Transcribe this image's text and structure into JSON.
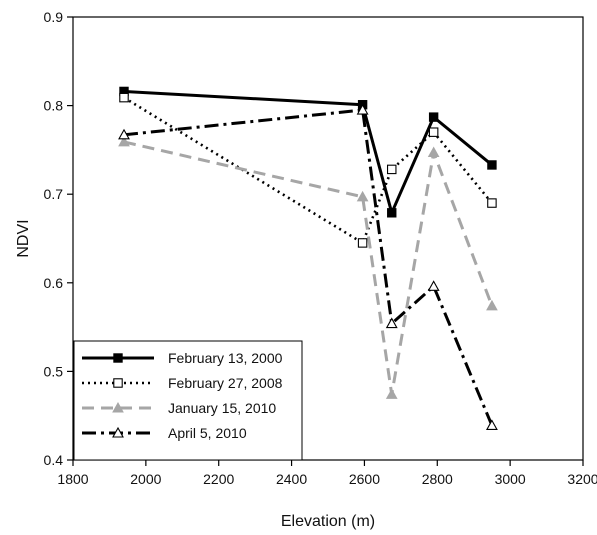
{
  "chart_data": {
    "type": "line",
    "xlabel": "Elevation (m)",
    "ylabel": "NDVI",
    "xlim": [
      1800,
      3200
    ],
    "ylim": [
      0.4,
      0.9
    ],
    "x_ticks": [
      1800,
      2000,
      2200,
      2400,
      2600,
      2800,
      3000,
      3200
    ],
    "y_ticks": [
      0.4,
      0.5,
      0.6,
      0.7,
      0.8,
      0.9
    ],
    "x_tick_labels": [
      "1800",
      "2000",
      "2200",
      "2400",
      "2600",
      "2800",
      "3000",
      "3200"
    ],
    "y_tick_labels": [
      "0.4",
      "0.5",
      "0.6",
      "0.7",
      "0.8",
      "0.9"
    ],
    "grid": false,
    "legend_position": "bottom-left",
    "series": [
      {
        "name": "February 13, 2000",
        "color": "#000000",
        "line_style": "solid",
        "marker": "filled-square",
        "x": [
          1940,
          2595,
          2675,
          2790,
          2950
        ],
        "y": [
          0.816,
          0.801,
          0.679,
          0.787,
          0.733
        ]
      },
      {
        "name": "February 27, 2008",
        "color": "#000000",
        "line_style": "dotted",
        "marker": "open-square",
        "x": [
          1940,
          2595,
          2675,
          2790,
          2950
        ],
        "y": [
          0.809,
          0.645,
          0.728,
          0.77,
          0.69
        ]
      },
      {
        "name": "January 15, 2010",
        "color": "#a6a6a6",
        "line_style": "dashed",
        "marker": "filled-triangle",
        "x": [
          1940,
          2595,
          2675,
          2790,
          2950
        ],
        "y": [
          0.759,
          0.697,
          0.474,
          0.747,
          0.574
        ]
      },
      {
        "name": "April 5, 2010",
        "color": "#000000",
        "line_style": "dash-dot",
        "marker": "open-triangle",
        "x": [
          1940,
          2595,
          2675,
          2790,
          2950
        ],
        "y": [
          0.767,
          0.795,
          0.554,
          0.596,
          0.439
        ]
      }
    ]
  }
}
